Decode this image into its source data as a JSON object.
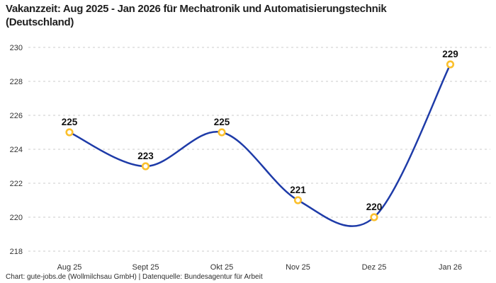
{
  "header": {
    "title_line1": "Vakanzzeit: Aug 2025 - Jan 2026 für Mechatronik und Automatisierungstechnik",
    "title_line2": "(Deutschland)"
  },
  "footer": {
    "attribution": "Chart: gute-jobs.de (Wollmilchsau GmbH) | Datenquelle: Bundesagentur für Arbeit"
  },
  "chart_data": {
    "type": "line",
    "title": "Vakanzzeit: Aug 2025 - Jan 2026 für Mechatronik und Automatisierungstechnik (Deutschland)",
    "categories": [
      "Aug 25",
      "Sept 25",
      "Okt 25",
      "Nov 25",
      "Dez 25",
      "Jan 26"
    ],
    "values": [
      225,
      223,
      225,
      221,
      220,
      229
    ],
    "xlabel": "",
    "ylabel": "",
    "ylim": [
      218,
      230
    ],
    "yticks": [
      218,
      220,
      222,
      224,
      226,
      228,
      230
    ],
    "grid": "horizontal-dashed",
    "legend": "none",
    "line_style": "smooth",
    "colors": {
      "line": "#1e3ba8",
      "marker_ring": "#fbc02d",
      "marker_fill": "#ffffff",
      "gridline": "#cbcbcb",
      "title_text": "#1f1f1f",
      "axis_text": "#333333",
      "data_label_text": "#111111",
      "background": "#ffffff"
    }
  }
}
